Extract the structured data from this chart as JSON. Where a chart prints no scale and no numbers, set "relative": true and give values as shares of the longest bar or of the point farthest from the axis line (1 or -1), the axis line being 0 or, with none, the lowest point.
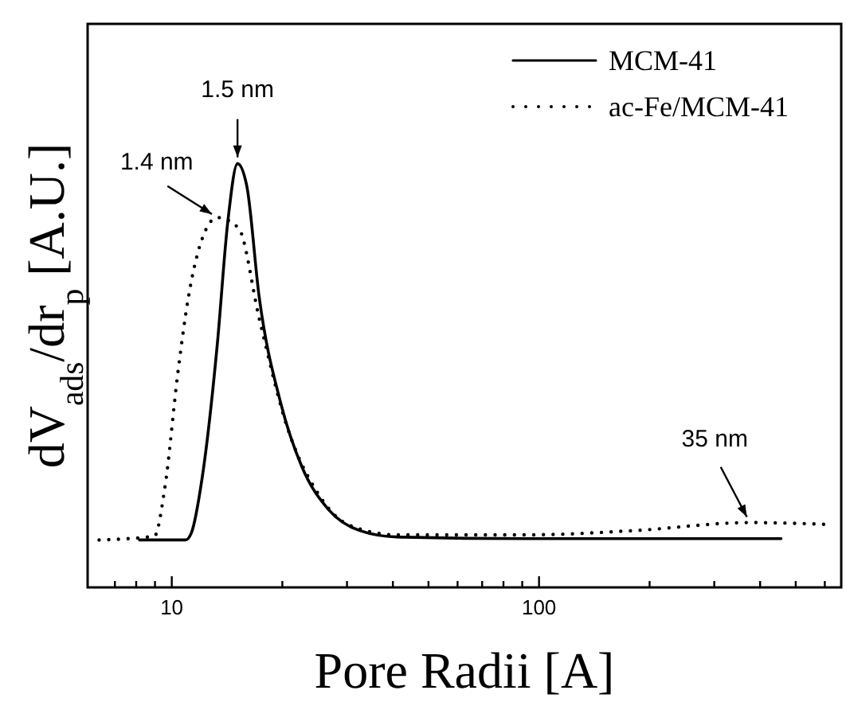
{
  "chart_data": {
    "type": "line",
    "relative": true,
    "xlabel": "Pore Radii [A]",
    "ylabel": "dV$_{ads}$/dr$_{p}$ [A.U.]",
    "log": "x",
    "xlim": [
      5.9,
      665
    ],
    "xticks": [
      {
        "value": 7,
        "label": null
      },
      {
        "value": 8,
        "label": null
      },
      {
        "value": 9,
        "label": null
      },
      10,
      {
        "value": 20,
        "label": null
      },
      {
        "value": 30,
        "label": null
      },
      {
        "value": 40,
        "label": null
      },
      {
        "value": 50,
        "label": null
      },
      {
        "value": 60,
        "label": null
      },
      {
        "value": 70,
        "label": null
      },
      {
        "value": 80,
        "label": null
      },
      {
        "value": 90,
        "label": null
      },
      100,
      {
        "value": 200,
        "label": null
      },
      {
        "value": 300,
        "label": null
      },
      {
        "value": 400,
        "label": null
      },
      {
        "value": 500,
        "label": null
      },
      {
        "value": 600,
        "label": null
      }
    ],
    "legend": "top right",
    "grid": false,
    "series": [
      {
        "name": "MCM-41",
        "color": "#000000",
        "line_style": "solid",
        "x": [
          8.17,
          10.9,
          11.3,
          12.1,
          13.3,
          14.2,
          15.1,
          16.0,
          17.3,
          19.8,
          22.6,
          26.7,
          32.5,
          41.0,
          93,
          456
        ],
        "values": [
          0.112,
          0.112,
          0.128,
          0.259,
          0.573,
          0.861,
          1.0,
          0.948,
          0.685,
          0.435,
          0.285,
          0.184,
          0.134,
          0.119,
          0.115,
          0.115
        ]
      },
      {
        "name": "ac-Fe/MCM-41",
        "color": "#000000",
        "line_style": "dotted",
        "x": [
          6.34,
          8.97,
          9.57,
          10.4,
          11.1,
          12.1,
          13.3,
          15.2,
          17.3,
          20.5,
          25.0,
          30.4,
          41.0,
          93,
          181,
          375,
          596
        ],
        "values": [
          0.112,
          0.121,
          0.234,
          0.51,
          0.685,
          0.823,
          0.873,
          0.848,
          0.635,
          0.385,
          0.222,
          0.147,
          0.124,
          0.124,
          0.134,
          0.153,
          0.149
        ]
      }
    ],
    "annotations": [
      {
        "text": "1.5 nm",
        "x": 15.1,
        "y": 1.0
      },
      {
        "text": "1.4 nm",
        "x": 13.3,
        "y": 0.873
      },
      {
        "text": "35 nm",
        "x": 375,
        "y": 0.153
      }
    ]
  }
}
